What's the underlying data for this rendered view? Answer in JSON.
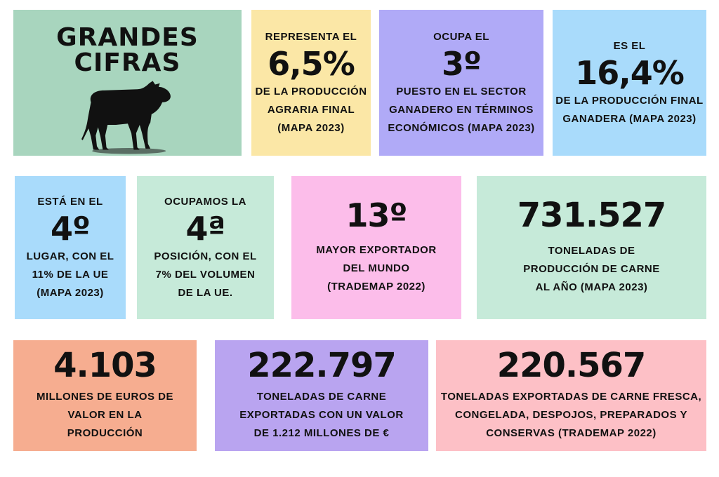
{
  "colors": {
    "green": "#a8d5be",
    "yellow": "#fbe7a6",
    "purple": "#b0aaf7",
    "blue": "#a9dbfb",
    "mint": "#c6ead9",
    "pink": "#fcbdea",
    "salmon": "#f6ad90",
    "violet": "#b9a4f0",
    "rose": "#fdc0c6"
  },
  "header": {
    "title": "GRANDES CIFRAS",
    "icon": "cow-icon"
  },
  "tiles": [
    {
      "pre": "REPRESENTA EL",
      "value": "6,5%",
      "lines": [
        "DE LA PRODUCCIÓN",
        "AGRARIA FINAL",
        "(MAPA 2023)"
      ]
    },
    {
      "pre": "OCUPA EL",
      "value": "3º",
      "lines": [
        "PUESTO EN EL SECTOR",
        "GANADERO EN TÉRMINOS",
        "ECONÓMICOS (MAPA 2023)"
      ]
    },
    {
      "pre": "ES EL",
      "value": "16,4%",
      "lines": [
        "DE LA PRODUCCIÓN FINAL",
        "GANADERA (MAPA 2023)"
      ]
    },
    {
      "pre": "ESTÁ EN EL",
      "value": "4º",
      "lines": [
        "LUGAR, CON EL",
        "11% DE LA UE",
        "(MAPA 2023)"
      ]
    },
    {
      "pre": "OCUPAMOS LA",
      "value": "4ª",
      "lines": [
        "POSICIÓN, CON EL",
        "7% DEL VOLUMEN",
        "DE LA UE."
      ]
    },
    {
      "value": "13º",
      "lines": [
        "MAYOR EXPORTADOR",
        "DEL MUNDO",
        "(TRADEMAP 2022)"
      ]
    },
    {
      "value": "731.527",
      "lines": [
        "TONELADAS DE",
        "PRODUCCIÓN DE CARNE",
        "AL AÑO (MAPA 2023)"
      ]
    },
    {
      "value": "4.103",
      "lines": [
        "MILLONES DE EUROS DE",
        "VALOR EN LA",
        "PRODUCCIÓN"
      ]
    },
    {
      "value": "222.797",
      "lines": [
        "TONELADAS DE CARNE",
        "EXPORTADAS CON UN VALOR",
        "DE 1.212 MILLONES DE €"
      ]
    },
    {
      "value": "220.567",
      "lines": [
        "TONELADAS EXPORTADAS DE CARNE FRESCA,",
        "CONGELADA, DESPOJOS, PREPARADOS Y",
        "CONSERVAS (TRADEMAP 2022)"
      ]
    }
  ]
}
